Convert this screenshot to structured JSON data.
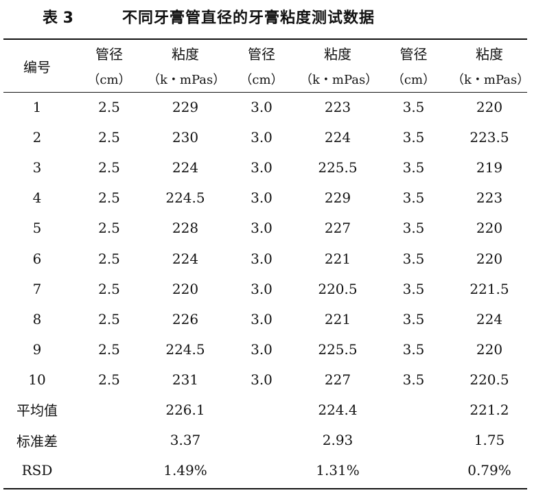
{
  "caption": {
    "number": "表 3",
    "title": "不同牙膏管直径的牙膏粘度测试数据"
  },
  "header": {
    "id_label": "编号",
    "groups": [
      {
        "diameter_label": "管径",
        "diameter_unit": "（cm）",
        "viscosity_label": "粘度",
        "viscosity_unit": "（k・mPas）"
      },
      {
        "diameter_label": "管径",
        "diameter_unit": "（cm）",
        "viscosity_label": "粘度",
        "viscosity_unit": "（k・mPas）"
      },
      {
        "diameter_label": "管径",
        "diameter_unit": "（cm）",
        "viscosity_label": "粘度",
        "viscosity_unit": "（k・mPas）"
      }
    ]
  },
  "rows": [
    {
      "id": "1",
      "cells": [
        "2.5",
        "229",
        "3.0",
        "223",
        "3.5",
        "220"
      ]
    },
    {
      "id": "2",
      "cells": [
        "2.5",
        "230",
        "3.0",
        "224",
        "3.5",
        "223.5"
      ]
    },
    {
      "id": "3",
      "cells": [
        "2.5",
        "224",
        "3.0",
        "225.5",
        "3.5",
        "219"
      ]
    },
    {
      "id": "4",
      "cells": [
        "2.5",
        "224.5",
        "3.0",
        "229",
        "3.5",
        "223"
      ]
    },
    {
      "id": "5",
      "cells": [
        "2.5",
        "228",
        "3.0",
        "227",
        "3.5",
        "220"
      ]
    },
    {
      "id": "6",
      "cells": [
        "2.5",
        "224",
        "3.0",
        "221",
        "3.5",
        "220"
      ]
    },
    {
      "id": "7",
      "cells": [
        "2.5",
        "220",
        "3.0",
        "220.5",
        "3.5",
        "221.5"
      ]
    },
    {
      "id": "8",
      "cells": [
        "2.5",
        "226",
        "3.0",
        "221",
        "3.5",
        "224"
      ]
    },
    {
      "id": "9",
      "cells": [
        "2.5",
        "224.5",
        "3.0",
        "225.5",
        "3.5",
        "220"
      ]
    },
    {
      "id": "10",
      "cells": [
        "2.5",
        "231",
        "3.0",
        "227",
        "3.5",
        "220.5"
      ]
    }
  ],
  "summary": [
    {
      "label": "平均值",
      "values": [
        "226.1",
        "224.4",
        "221.2"
      ]
    },
    {
      "label": "标准差",
      "values": [
        "3.37",
        "2.93",
        "1.75"
      ]
    },
    {
      "label": "RSD",
      "values": [
        "1.49%",
        "1.31%",
        "0.79%"
      ]
    }
  ]
}
